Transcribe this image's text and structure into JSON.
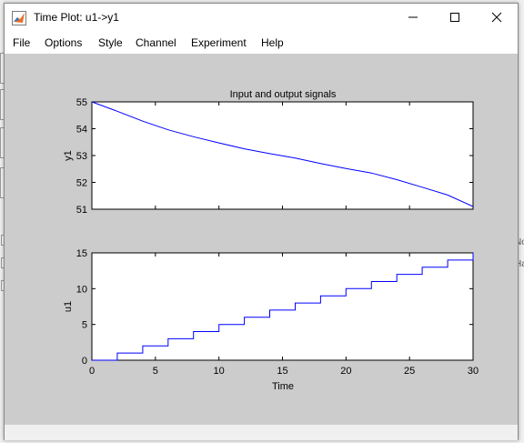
{
  "window": {
    "title": "Time Plot: u1->y1"
  },
  "menu": {
    "items": [
      "File",
      "Options",
      "Style",
      "Channel",
      "Experiment",
      "Help"
    ]
  },
  "background_app": {
    "fragments": [
      "No",
      "Ha"
    ]
  },
  "colors": {
    "signal": "#0000ff",
    "plot_bg": "#cccccc",
    "axes_bg": "#ffffff"
  },
  "chart_data": [
    {
      "type": "line",
      "title": "Input and output signals",
      "ylabel": "y1",
      "xlabel": "",
      "xlim": [
        0,
        30
      ],
      "ylim": [
        51,
        55
      ],
      "yticks": [
        51,
        52,
        53,
        54,
        55
      ],
      "x": [
        0,
        2,
        4,
        6,
        8,
        10,
        12,
        14,
        16,
        18,
        20,
        22,
        24,
        26,
        28,
        30
      ],
      "values": [
        55.0,
        54.65,
        54.28,
        53.96,
        53.7,
        53.47,
        53.25,
        53.07,
        52.91,
        52.7,
        52.52,
        52.35,
        52.1,
        51.82,
        51.53,
        51.1
      ]
    },
    {
      "type": "line",
      "step": true,
      "title": "",
      "ylabel": "u1",
      "xlabel": "Time",
      "xlim": [
        0,
        30
      ],
      "ylim": [
        0,
        15
      ],
      "xticks": [
        0,
        5,
        10,
        15,
        20,
        25,
        30
      ],
      "yticks": [
        0,
        5,
        10,
        15
      ],
      "x": [
        0,
        2,
        4,
        6,
        8,
        10,
        12,
        14,
        16,
        18,
        20,
        22,
        24,
        26,
        28,
        30
      ],
      "values": [
        0,
        1,
        2,
        3,
        4,
        5,
        6,
        7,
        8,
        9,
        10,
        11,
        12,
        13,
        14,
        15
      ]
    }
  ]
}
